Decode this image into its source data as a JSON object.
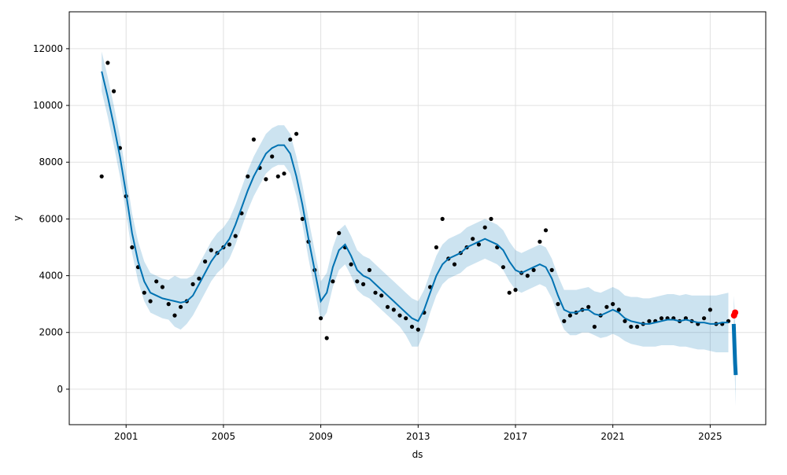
{
  "chart_data": {
    "type": "line",
    "title": "",
    "xlabel": "ds",
    "ylabel": "y",
    "x_ticks": [
      "2001",
      "2005",
      "2009",
      "2013",
      "2017",
      "2021",
      "2025"
    ],
    "y_ticks": [
      "0",
      "2000",
      "4000",
      "6000",
      "8000",
      "10000",
      "12000"
    ],
    "xlim": [
      "1998-09-01",
      "2027-04-15"
    ],
    "ylim": [
      -1250,
      13300
    ],
    "grid": true,
    "legend": "none",
    "colors": {
      "forecast_line": "#0072B2",
      "uncertainty_band": "#0072B2",
      "observed_points": "#000000",
      "last_points": "#ff0000"
    },
    "series": [
      {
        "role": "forecast",
        "x": [
          "2000-01-01",
          "2000-04-01",
          "2000-07-01",
          "2000-10-01",
          "2001-01-01",
          "2001-04-01",
          "2001-07-01",
          "2001-10-01",
          "2002-01-01",
          "2002-04-01",
          "2002-07-01",
          "2002-10-01",
          "2003-01-01",
          "2003-04-01",
          "2003-07-01",
          "2003-10-01",
          "2004-01-01",
          "2004-04-01",
          "2004-07-01",
          "2004-10-01",
          "2005-01-01",
          "2005-04-01",
          "2005-07-01",
          "2005-10-01",
          "2006-01-01",
          "2006-04-01",
          "2006-07-01",
          "2006-10-01",
          "2007-01-01",
          "2007-04-01",
          "2007-07-01",
          "2007-10-01",
          "2008-01-01",
          "2008-04-01",
          "2008-07-01",
          "2008-10-01",
          "2009-01-01",
          "2009-04-01",
          "2009-07-01",
          "2009-10-01",
          "2010-01-01",
          "2010-04-01",
          "2010-07-01",
          "2010-10-01",
          "2011-01-01",
          "2011-04-01",
          "2011-07-01",
          "2011-10-01",
          "2012-01-01",
          "2012-04-01",
          "2012-07-01",
          "2012-10-01",
          "2013-01-01",
          "2013-04-01",
          "2013-07-01",
          "2013-10-01",
          "2014-01-01",
          "2014-04-01",
          "2014-07-01",
          "2014-10-01",
          "2015-01-01",
          "2015-04-01",
          "2015-07-01",
          "2015-10-01",
          "2016-01-01",
          "2016-04-01",
          "2016-07-01",
          "2016-10-01",
          "2017-01-01",
          "2017-04-01",
          "2017-07-01",
          "2017-10-01",
          "2018-01-01",
          "2018-04-01",
          "2018-07-01",
          "2018-10-01",
          "2019-01-01",
          "2019-04-01",
          "2019-07-01",
          "2019-10-01",
          "2020-01-01",
          "2020-04-01",
          "2020-07-01",
          "2020-10-01",
          "2021-01-01",
          "2021-04-01",
          "2021-07-01",
          "2021-10-01",
          "2022-01-01",
          "2022-04-01",
          "2022-07-01",
          "2022-10-01",
          "2023-01-01",
          "2023-04-01",
          "2023-07-01",
          "2023-10-01",
          "2024-01-01",
          "2024-04-01",
          "2024-07-01",
          "2024-10-01",
          "2025-01-01",
          "2025-04-01",
          "2025-07-01",
          "2025-10-01"
        ],
        "yhat": [
          11200,
          10300,
          9300,
          8200,
          6900,
          5500,
          4500,
          3800,
          3400,
          3300,
          3200,
          3150,
          3100,
          3050,
          3100,
          3300,
          3700,
          4100,
          4500,
          4800,
          5000,
          5300,
          5800,
          6400,
          7000,
          7500,
          7900,
          8300,
          8500,
          8600,
          8600,
          8300,
          7500,
          6500,
          5300,
          4200,
          3100,
          3400,
          4300,
          4900,
          5100,
          4700,
          4200,
          4000,
          3900,
          3700,
          3500,
          3300,
          3100,
          2900,
          2700,
          2500,
          2400,
          2800,
          3400,
          4000,
          4400,
          4600,
          4700,
          4800,
          5000,
          5100,
          5200,
          5300,
          5200,
          5100,
          4900,
          4500,
          4200,
          4100,
          4200,
          4300,
          4400,
          4300,
          3900,
          3300,
          2800,
          2700,
          2700,
          2800,
          2800,
          2650,
          2600,
          2700,
          2800,
          2700,
          2500,
          2400,
          2350,
          2300,
          2300,
          2350,
          2400,
          2450,
          2450,
          2400,
          2450,
          2400,
          2350,
          2350,
          2300,
          2300,
          2350,
          2350
        ],
        "yhat_lower": [
          10500,
          9600,
          8600,
          7500,
          6200,
          4800,
          3800,
          3100,
          2700,
          2600,
          2500,
          2450,
          2200,
          2100,
          2300,
          2600,
          3000,
          3400,
          3800,
          4100,
          4300,
          4600,
          5100,
          5700,
          6300,
          6800,
          7200,
          7600,
          7800,
          7900,
          7900,
          7600,
          6800,
          5800,
          4600,
          3500,
          2400,
          2700,
          3600,
          4200,
          4400,
          4000,
          3500,
          3300,
          3200,
          3000,
          2800,
          2600,
          2400,
          2200,
          1900,
          1500,
          1500,
          2000,
          2700,
          3300,
          3700,
          3900,
          4000,
          4100,
          4300,
          4400,
          4500,
          4600,
          4500,
          4400,
          4200,
          3800,
          3500,
          3400,
          3500,
          3600,
          3700,
          3600,
          3200,
          2600,
          2100,
          1900,
          1900,
          2000,
          2000,
          1900,
          1800,
          1850,
          1950,
          1850,
          1700,
          1600,
          1550,
          1500,
          1500,
          1500,
          1550,
          1550,
          1550,
          1500,
          1500,
          1450,
          1400,
          1400,
          1350,
          1300,
          1300,
          1300
        ],
        "yhat_upper": [
          11900,
          11000,
          10000,
          8900,
          7600,
          6200,
          5200,
          4500,
          4100,
          4000,
          3900,
          3850,
          4000,
          3900,
          3900,
          4000,
          4400,
          4800,
          5200,
          5500,
          5700,
          6000,
          6500,
          7100,
          7700,
          8200,
          8600,
          9000,
          9200,
          9300,
          9300,
          9000,
          8200,
          7200,
          6000,
          4900,
          3800,
          4100,
          5000,
          5600,
          5800,
          5400,
          4900,
          4700,
          4600,
          4400,
          4200,
          4000,
          3800,
          3600,
          3400,
          3200,
          3100,
          3500,
          4100,
          4700,
          5100,
          5300,
          5400,
          5500,
          5700,
          5800,
          5900,
          6000,
          5900,
          5800,
          5600,
          5200,
          4900,
          4800,
          4900,
          5000,
          5100,
          5000,
          4600,
          4000,
          3500,
          3500,
          3500,
          3550,
          3600,
          3450,
          3400,
          3500,
          3600,
          3500,
          3300,
          3250,
          3250,
          3200,
          3200,
          3250,
          3300,
          3350,
          3350,
          3300,
          3350,
          3300,
          3300,
          3300,
          3300,
          3300,
          3350,
          3400
        ]
      },
      {
        "role": "observed",
        "x": [
          "2000-01-01",
          "2000-04-01",
          "2000-07-01",
          "2000-10-01",
          "2001-01-01",
          "2001-04-01",
          "2001-07-01",
          "2001-10-01",
          "2002-01-01",
          "2002-04-01",
          "2002-07-01",
          "2002-10-01",
          "2003-01-01",
          "2003-04-01",
          "2003-07-01",
          "2003-10-01",
          "2004-01-01",
          "2004-04-01",
          "2004-07-01",
          "2004-10-01",
          "2005-01-01",
          "2005-04-01",
          "2005-07-01",
          "2005-10-01",
          "2006-01-01",
          "2006-04-01",
          "2006-07-01",
          "2006-10-01",
          "2007-01-01",
          "2007-04-01",
          "2007-07-01",
          "2007-10-01",
          "2008-01-01",
          "2008-04-01",
          "2008-07-01",
          "2008-10-01",
          "2009-01-01",
          "2009-04-01",
          "2009-07-01",
          "2009-10-01",
          "2010-01-01",
          "2010-04-01",
          "2010-07-01",
          "2010-10-01",
          "2011-01-01",
          "2011-04-01",
          "2011-07-01",
          "2011-10-01",
          "2012-01-01",
          "2012-04-01",
          "2012-07-01",
          "2012-10-01",
          "2013-01-01",
          "2013-04-01",
          "2013-07-01",
          "2013-10-01",
          "2014-01-01",
          "2014-04-01",
          "2014-07-01",
          "2014-10-01",
          "2015-01-01",
          "2015-04-01",
          "2015-07-01",
          "2015-10-01",
          "2016-01-01",
          "2016-04-01",
          "2016-07-01",
          "2016-10-01",
          "2017-01-01",
          "2017-04-01",
          "2017-07-01",
          "2017-10-01",
          "2018-01-01",
          "2018-04-01",
          "2018-07-01",
          "2018-10-01",
          "2019-01-01",
          "2019-04-01",
          "2019-07-01",
          "2019-10-01",
          "2020-01-01",
          "2020-04-01",
          "2020-07-01",
          "2020-10-01",
          "2021-01-01",
          "2021-04-01",
          "2021-07-01",
          "2021-10-01",
          "2022-01-01",
          "2022-04-01",
          "2022-07-01",
          "2022-10-01",
          "2023-01-01",
          "2023-04-01",
          "2023-07-01",
          "2023-10-01",
          "2024-01-01",
          "2024-04-01",
          "2024-07-01",
          "2024-10-01",
          "2025-01-01",
          "2025-04-01",
          "2025-07-01",
          "2025-10-01"
        ],
        "y": [
          7500,
          11500,
          10500,
          8500,
          6800,
          5000,
          4300,
          3400,
          3100,
          3800,
          3600,
          3000,
          2600,
          2900,
          3100,
          3700,
          3900,
          4500,
          4900,
          4800,
          5000,
          5100,
          5400,
          6200,
          7500,
          8800,
          7800,
          7400,
          8200,
          7500,
          7600,
          8800,
          9000,
          6000,
          5200,
          4200,
          2500,
          1800,
          3800,
          5500,
          5000,
          4400,
          3800,
          3700,
          4200,
          3400,
          3300,
          2900,
          2800,
          2600,
          2500,
          2200,
          2100,
          2700,
          3600,
          5000,
          6000,
          4600,
          4400,
          4800,
          5000,
          5300,
          5100,
          5700,
          6000,
          5000,
          4300,
          3400,
          3500,
          4100,
          4000,
          4200,
          5200,
          5600,
          4200,
          3000,
          2400,
          2600,
          2700,
          2800,
          2900,
          2200,
          2600,
          2900,
          3000,
          2800,
          2400,
          2200,
          2200,
          2300,
          2400,
          2400,
          2500,
          2500,
          2500,
          2400,
          2500,
          2400,
          2300,
          2500,
          2800,
          2300,
          2300,
          2400
        ]
      },
      {
        "role": "last_points",
        "x": [
          "2025-12-25",
          "2026-01-10"
        ],
        "y": [
          2600,
          2700
        ]
      },
      {
        "role": "forecast_tail",
        "x": [
          "2025-12-20",
          "2026-01-01",
          "2026-01-10",
          "2026-01-20"
        ],
        "yhat": [
          2300,
          1500,
          900,
          500
        ],
        "yhat_lower": [
          1500,
          700,
          100,
          -600
        ],
        "yhat_upper": [
          3300,
          2900,
          2300,
          1400
        ]
      }
    ]
  }
}
